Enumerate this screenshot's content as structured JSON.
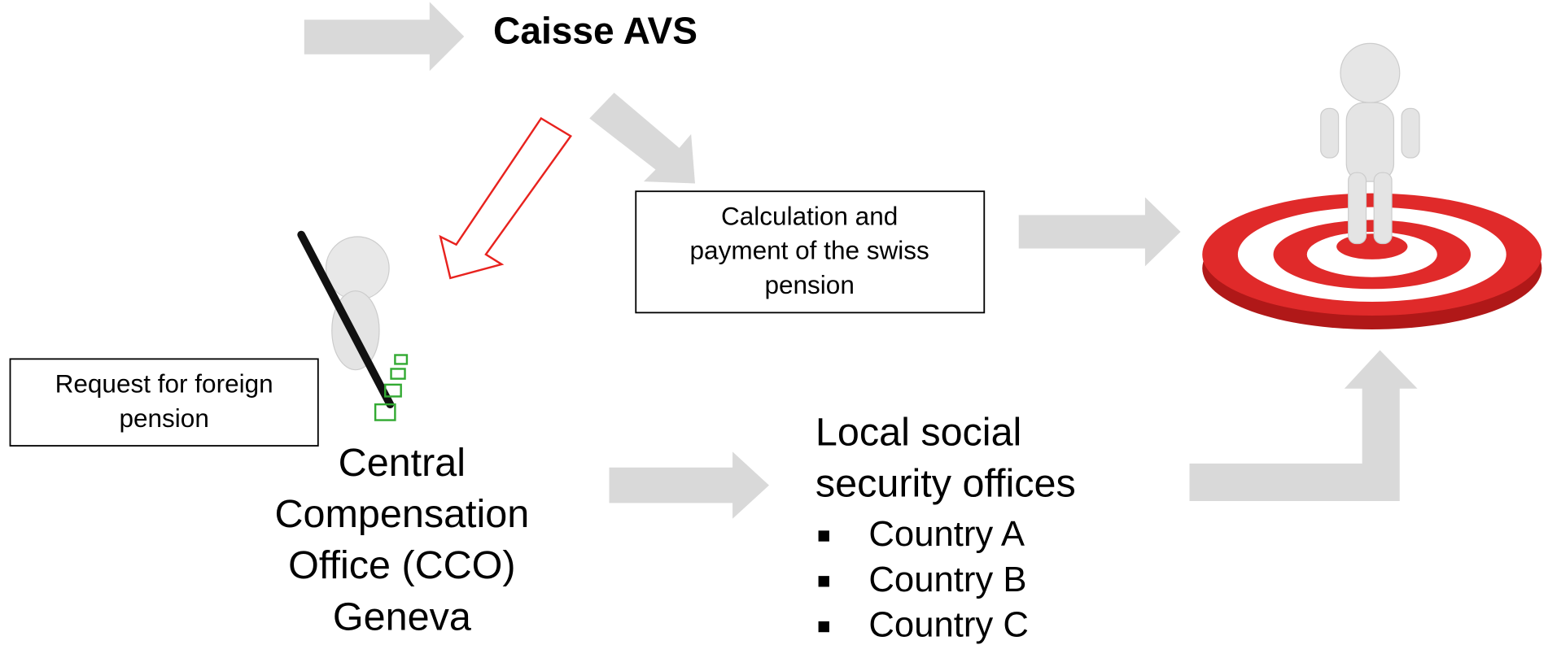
{
  "header": {
    "title": "Caisse AVS"
  },
  "calculation_box": {
    "lines": [
      "Calculation and",
      "payment of the swiss",
      "pension"
    ]
  },
  "request_box": {
    "lines": [
      "Request for foreign",
      "pension"
    ]
  },
  "cco": {
    "lines": [
      "Central",
      "Compensation",
      "Office (CCO)",
      "Geneva"
    ]
  },
  "local_offices": {
    "lines": [
      "Local social",
      "security offices"
    ],
    "items": [
      "Country A",
      "Country B",
      "Country C"
    ]
  }
}
